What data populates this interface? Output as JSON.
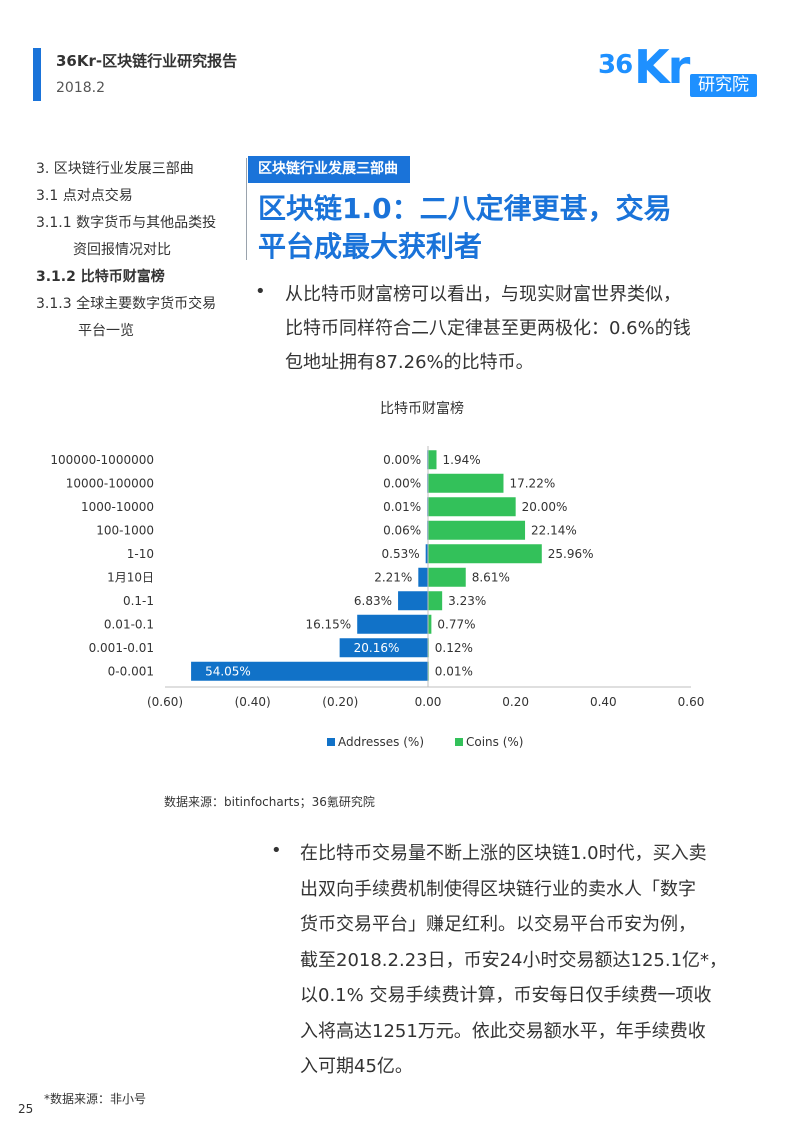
{
  "header": {
    "title": "36Kr-区块链行业研究报告",
    "date": "2018.2",
    "logo_number": "36",
    "logo_letters": "Kr",
    "logo_tag": "研究院",
    "accent_color": "#1a73d9"
  },
  "nav": {
    "items": [
      "3. 区块链行业发展三部曲",
      "3.1 点对点交易",
      "3.1.1 数字货币与其他品类投",
      "资回报情况对比",
      "3.1.2 比特币财富榜",
      "3.1.3 全球主要数字货币交易",
      "平台一览"
    ],
    "active_index": 4
  },
  "section": {
    "tag": "区块链行业发展三部曲",
    "title_line1": "区块链1.0：二八定律更甚，交易",
    "title_line2": "平台成最大获利者"
  },
  "paragraph1": {
    "bullet": "•",
    "lines": [
      "从比特币财富榜可以看出，与现实财富世界类似，",
      "比特币同样符合二八定律甚至更两极化：0.6%的钱",
      "包地址拥有87.26%的比特币。"
    ]
  },
  "chart_title": "比特币财富榜",
  "chart_data": {
    "type": "bar",
    "orientation": "horizontal",
    "categories": [
      "100000-1000000",
      "10000-100000",
      "1000-10000",
      "100-1000",
      "1-10",
      "1月10日",
      "0.1-1",
      "0.01-0.1",
      "0.001-0.01",
      "0-0.001"
    ],
    "series": [
      {
        "name": "Addresses (%)",
        "color": "#1172c8",
        "values": [
          0.0,
          0.0,
          0.0001,
          0.0006,
          0.0053,
          0.0221,
          0.0683,
          0.1615,
          0.2016,
          0.5405
        ],
        "labels": [
          "0.00%",
          "0.00%",
          "0.01%",
          "0.06%",
          "0.53%",
          "2.21%",
          "6.83%",
          "16.15%",
          "20.16%",
          "54.05%"
        ],
        "direction": "negative"
      },
      {
        "name": "Coins (%)",
        "color": "#33c15a",
        "values": [
          0.0194,
          0.1722,
          0.2,
          0.2214,
          0.2596,
          0.0861,
          0.0323,
          0.0077,
          0.0012,
          0.0001
        ],
        "labels": [
          "1.94%",
          "17.22%",
          "20.00%",
          "22.14%",
          "25.96%",
          "8.61%",
          "3.23%",
          "0.77%",
          "0.12%",
          "0.01%"
        ],
        "direction": "positive"
      }
    ],
    "xlim": [
      -0.6,
      0.6
    ],
    "xticks": [
      -0.6,
      -0.4,
      -0.2,
      0.0,
      0.2,
      0.4,
      0.6
    ],
    "xtick_labels": [
      "(0.60)",
      "(0.40)",
      "(0.20)",
      "0.00",
      "0.20",
      "0.40",
      "0.60"
    ],
    "legend_position": "bottom",
    "grid": false
  },
  "source": "数据来源：bitinfocharts；36氪研究院",
  "paragraph2": {
    "bullet": "•",
    "lines": [
      "在比特币交易量不断上涨的区块链1.0时代，买入卖",
      "出双向手续费机制使得区块链行业的卖水人「数字",
      "货币交易平台」赚足红利。以交易平台币安为例，",
      "截至2018.2.23日，币安24小时交易额达125.1亿*，",
      "以0.1% 交易手续费计算，币安每日仅手续费一项收",
      "入将高达1251万元。依此交易额水平，年手续费收",
      "入可期45亿。"
    ]
  },
  "footnote": "*数据来源：非小号",
  "page_number": "25"
}
